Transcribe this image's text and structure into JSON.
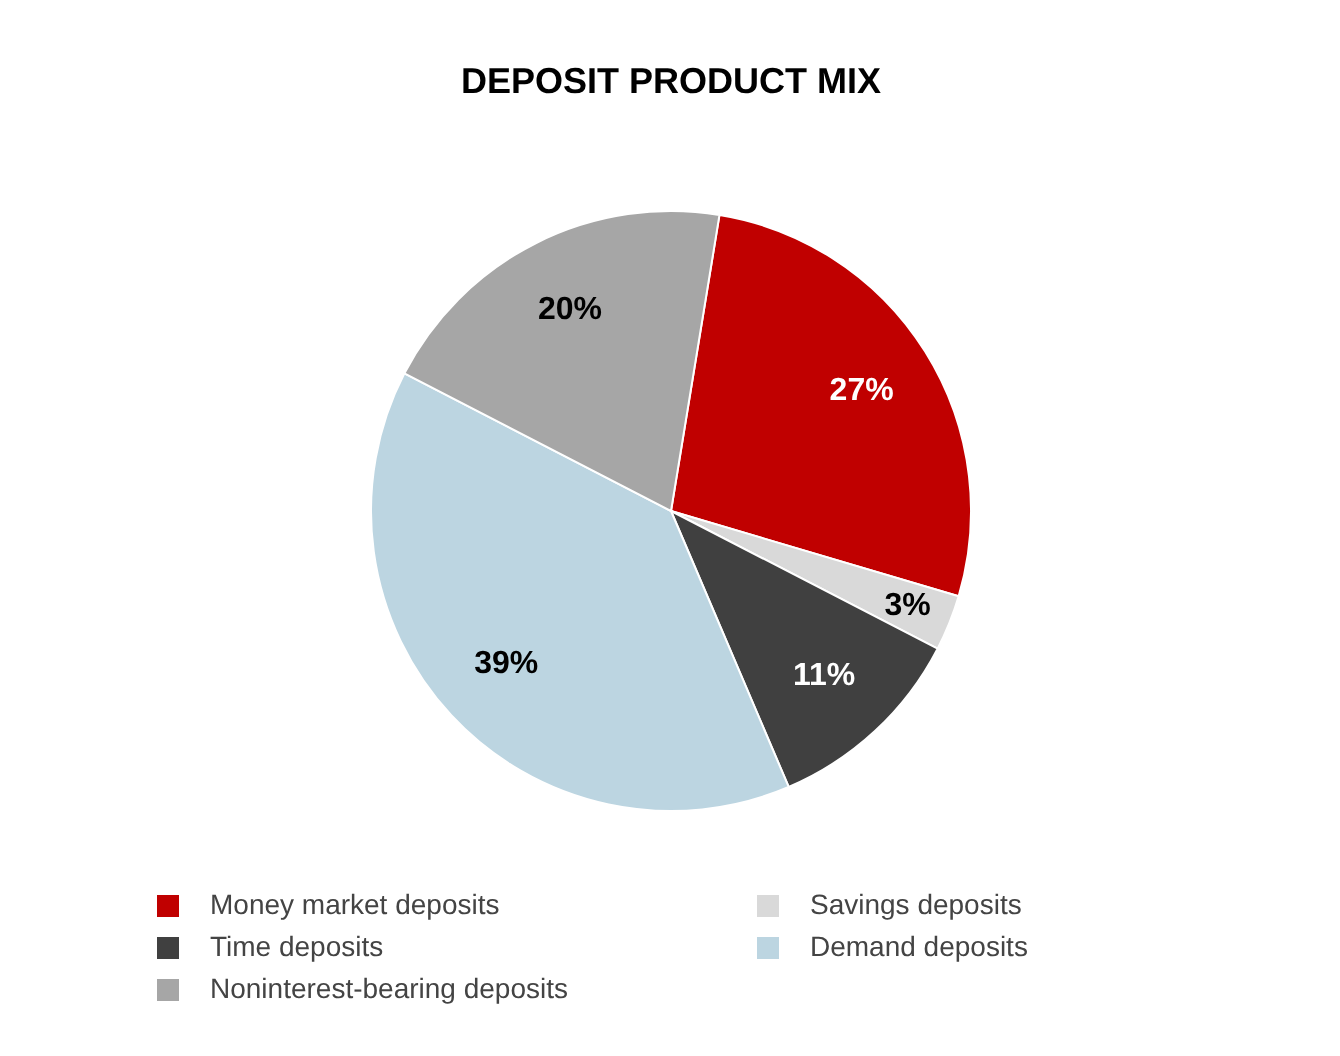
{
  "chart_data": {
    "type": "pie",
    "title": "DEPOSIT PRODUCT MIX",
    "categories": [
      "Money market deposits",
      "Savings deposits",
      "Time deposits",
      "Demand deposits",
      "Noninterest-bearing deposits"
    ],
    "values": [
      27,
      3,
      11,
      39,
      20
    ],
    "colors": [
      "#c00000",
      "#d9d9d9",
      "#404040",
      "#bcd5e1",
      "#a6a6a6"
    ],
    "value_labels": [
      "27%",
      "3%",
      "11%",
      "39%",
      "20%"
    ],
    "legend": "bottom"
  }
}
